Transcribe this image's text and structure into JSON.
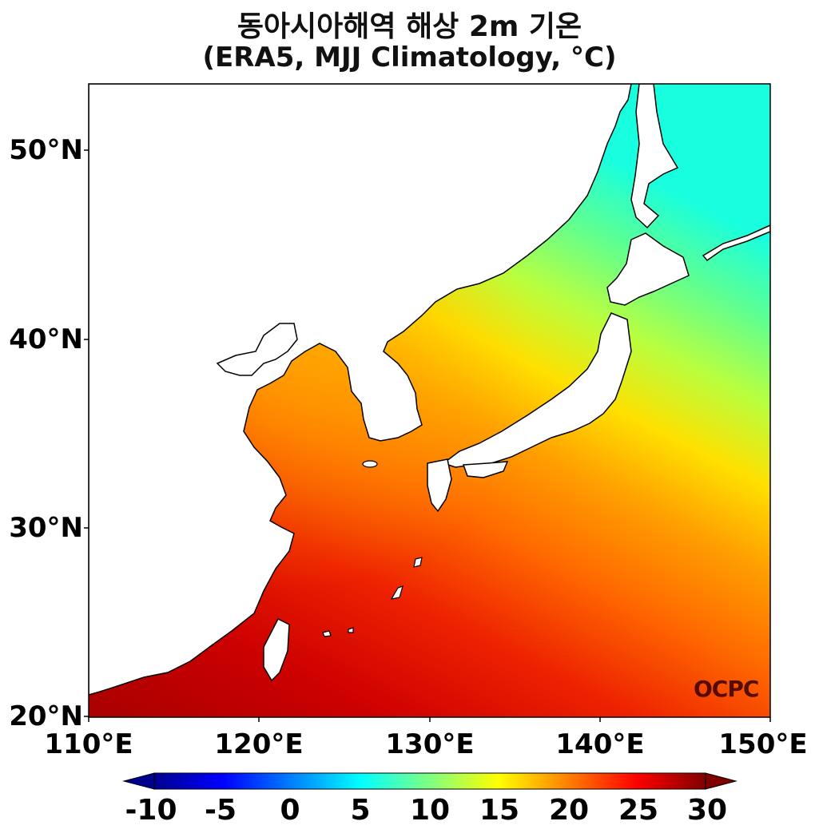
{
  "title": {
    "line1": "동아시아해역 해상 2m 기온",
    "line2": "(ERA5, MJJ Climatology, °C)"
  },
  "axes": {
    "y_ticks": [
      "50°N",
      "40°N",
      "30°N",
      "20°N"
    ],
    "x_ticks": [
      "110°E",
      "120°E",
      "130°E",
      "140°E",
      "150°E"
    ],
    "lon_range": [
      110,
      150
    ],
    "lat_range": [
      20,
      53.5
    ]
  },
  "colorbar": {
    "ticks": [
      "-10",
      "-5",
      "0",
      "5",
      "10",
      "15",
      "20",
      "25",
      "30"
    ],
    "range": [
      -10,
      30
    ],
    "colormap": "jet",
    "extend": "both"
  },
  "watermark": "OCPC",
  "colors": {
    "land": "#ffffff",
    "coast": "#000000"
  }
}
